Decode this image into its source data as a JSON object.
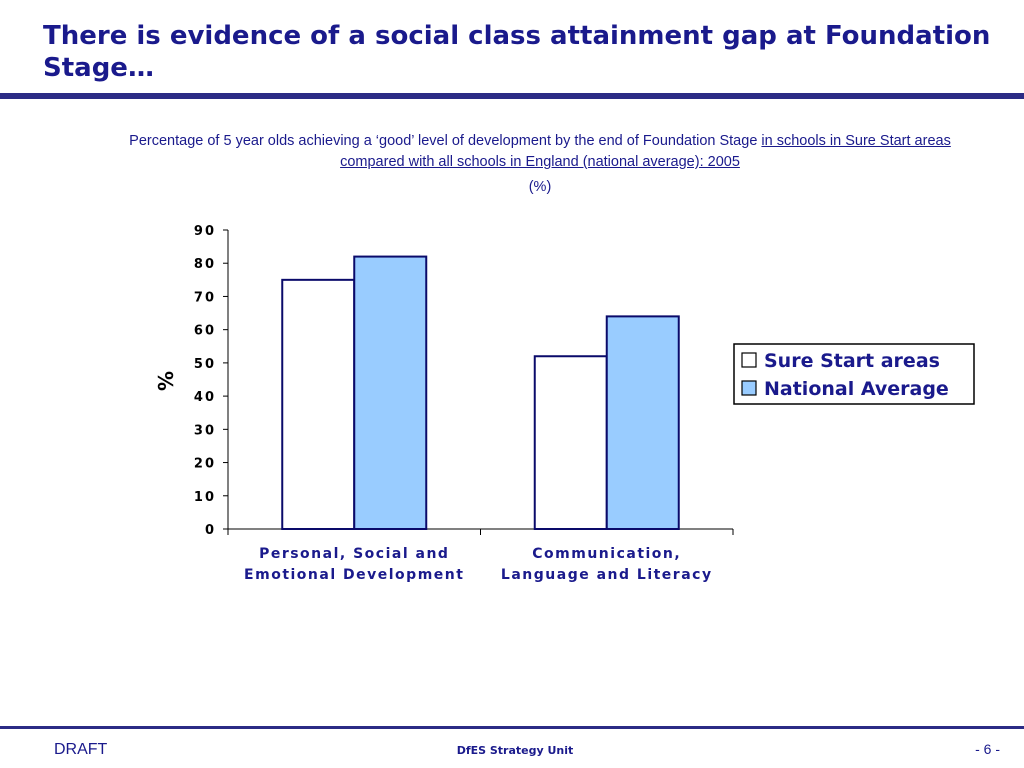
{
  "slide": {
    "title": "There is evidence of a social class attainment gap at Foundation Stage…",
    "caption_plain": "Percentage of 5 year olds achieving a ‘good’ level of development by the end of Foundation Stage ",
    "caption_underlined": "in schools in Sure Start areas compared with all schools in England (national average): 2005",
    "unit_note": "(%)"
  },
  "footer": {
    "left": "DRAFT",
    "center": "DfES Strategy Unit",
    "right": "- 6 -"
  },
  "colors": {
    "title": "#1a1a8c",
    "rule": "#2b2b85",
    "bar_outline": "#0a0a6a",
    "series_1_fill": "#ffffff",
    "series_2_fill": "#99ccff"
  },
  "chart_data": {
    "type": "bar",
    "title": "",
    "xlabel": "",
    "ylabel": "%",
    "ylim": [
      0,
      90
    ],
    "yticks": [
      0,
      10,
      20,
      30,
      40,
      50,
      60,
      70,
      80,
      90
    ],
    "grid": false,
    "legend_position": "right",
    "categories": [
      [
        "Personal, Social and",
        "Emotional Development"
      ],
      [
        "Communication,",
        "Language and Literacy"
      ]
    ],
    "series": [
      {
        "name": "Sure Start areas",
        "values": [
          75,
          52
        ]
      },
      {
        "name": "National Average",
        "values": [
          82,
          64
        ]
      }
    ]
  }
}
